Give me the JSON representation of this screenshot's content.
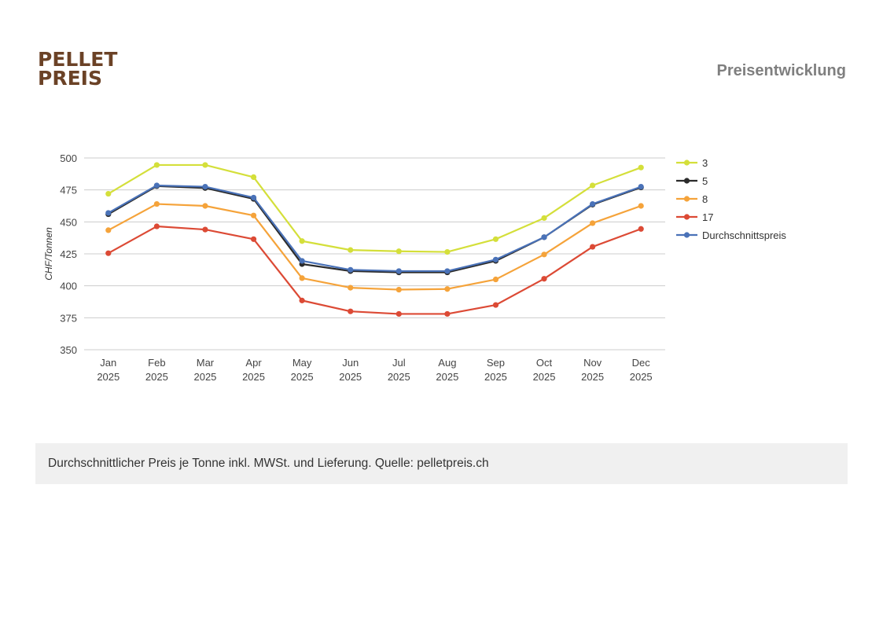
{
  "logo": {
    "line1": "PELLET",
    "line2": "PREIS",
    "color": "#6b4226"
  },
  "header": {
    "title": "Preisentwicklung"
  },
  "footer": {
    "note": "Durchschnittlicher Preis je Tonne inkl. MWSt. und Lieferung. Quelle: pelletpreis.ch"
  },
  "chart_data": {
    "type": "line",
    "title": "",
    "xlabel": "",
    "ylabel": "CHF/Tonnen",
    "ylim": [
      350,
      500
    ],
    "yticks": [
      350,
      375,
      400,
      425,
      450,
      475,
      500
    ],
    "grid": true,
    "legend_position": "right",
    "categories": [
      [
        "Jan",
        "2025"
      ],
      [
        "Feb",
        "2025"
      ],
      [
        "Mar",
        "2025"
      ],
      [
        "Apr",
        "2025"
      ],
      [
        "May",
        "2025"
      ],
      [
        "Jun",
        "2025"
      ],
      [
        "Jul",
        "2025"
      ],
      [
        "Aug",
        "2025"
      ],
      [
        "Sep",
        "2025"
      ],
      [
        "Oct",
        "2025"
      ],
      [
        "Nov",
        "2025"
      ],
      [
        "Dec",
        "2025"
      ]
    ],
    "series": [
      {
        "name": "3",
        "color": "#d4df3a",
        "values": [
          472,
          494.5,
          494.5,
          485,
          435,
          428,
          427,
          426.5,
          436.5,
          453,
          478.5,
          492.5
        ]
      },
      {
        "name": "5",
        "color": "#2b2b2b",
        "values": [
          456,
          478,
          476.5,
          468,
          417,
          411.5,
          410.5,
          410.5,
          419.5,
          438,
          463.5,
          477
        ]
      },
      {
        "name": "8",
        "color": "#f5a33a",
        "values": [
          443.5,
          464,
          462.5,
          455,
          406,
          398.5,
          397,
          397.5,
          405,
          424.5,
          449,
          462.5
        ]
      },
      {
        "name": "17",
        "color": "#dc4a35",
        "values": [
          425.5,
          446.5,
          444,
          436.5,
          388.5,
          380,
          378,
          378,
          385,
          405.5,
          430.5,
          444.5
        ]
      },
      {
        "name": "Durchschnittspreis",
        "color": "#4a72b8",
        "values": [
          457,
          478.5,
          477.5,
          469,
          419.5,
          412.5,
          411.5,
          411.5,
          420.5,
          438,
          464,
          477.5
        ]
      }
    ]
  }
}
